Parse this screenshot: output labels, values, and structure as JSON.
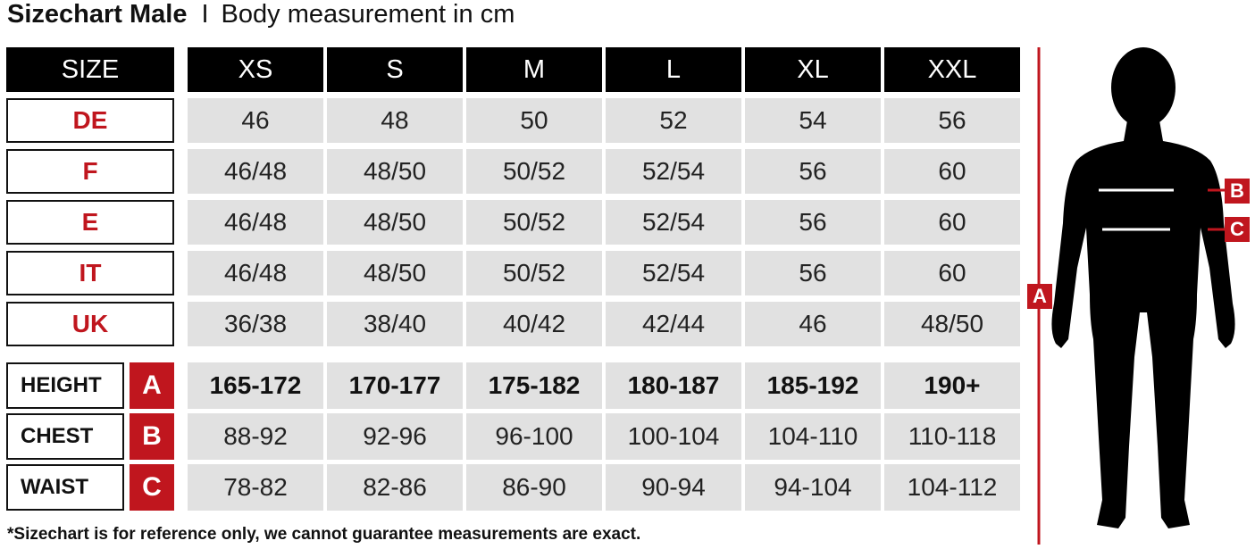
{
  "title": {
    "bold": "Sizechart Male",
    "separator": "I",
    "subtitle": "Body measurement in cm"
  },
  "accent_color": "#c0161e",
  "table": {
    "corner": "SIZE",
    "sizes": [
      "XS",
      "S",
      "M",
      "L",
      "XL",
      "XXL"
    ],
    "rows": [
      {
        "label": "DE",
        "values": [
          "46",
          "48",
          "50",
          "52",
          "54",
          "56"
        ]
      },
      {
        "label": "F",
        "values": [
          "46/48",
          "48/50",
          "50/52",
          "52/54",
          "56",
          "60"
        ]
      },
      {
        "label": "E",
        "values": [
          "46/48",
          "48/50",
          "50/52",
          "52/54",
          "56",
          "60"
        ]
      },
      {
        "label": "IT",
        "values": [
          "46/48",
          "48/50",
          "50/52",
          "52/54",
          "56",
          "60"
        ]
      },
      {
        "label": "UK",
        "values": [
          "36/38",
          "38/40",
          "40/42",
          "42/44",
          "46",
          "48/50"
        ]
      }
    ],
    "measurements": [
      {
        "label": "HEIGHT",
        "letter": "A",
        "values": [
          "165-172",
          "170-177",
          "175-182",
          "180-187",
          "185-192",
          "190+"
        ],
        "bold": true
      },
      {
        "label": "CHEST",
        "letter": "B",
        "values": [
          "88-92",
          "92-96",
          "96-100",
          "100-104",
          "104-110",
          "110-118"
        ]
      },
      {
        "label": "WAIST",
        "letter": "C",
        "values": [
          "78-82",
          "82-86",
          "86-90",
          "90-94",
          "94-104",
          "104-112"
        ]
      }
    ]
  },
  "figure": {
    "markers": {
      "a": "A",
      "b": "B",
      "c": "C"
    }
  },
  "footnote": "*Sizechart is for reference only, we cannot guarantee measurements are exact."
}
